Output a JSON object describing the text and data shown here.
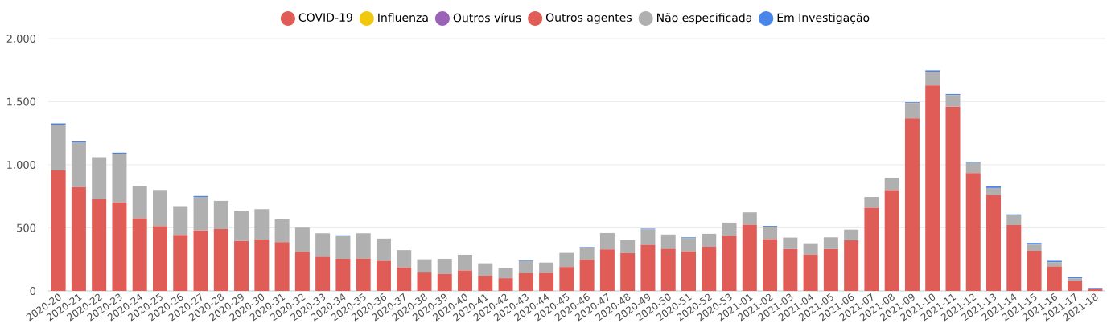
{
  "chart_data": {
    "type": "bar",
    "stacked": true,
    "grid": "y",
    "legend": "top",
    "categories": [
      "2020-20",
      "2020-21",
      "2020-22",
      "2020-23",
      "2020-24",
      "2020-25",
      "2020-26",
      "2020-27",
      "2020-28",
      "2020-29",
      "2020-30",
      "2020-31",
      "2020-32",
      "2020-33",
      "2020-34",
      "2020-35",
      "2020-36",
      "2020-37",
      "2020-38",
      "2020-39",
      "2020-40",
      "2020-41",
      "2020-42",
      "2020-43",
      "2020-44",
      "2020-45",
      "2020-46",
      "2020-47",
      "2020-48",
      "2020-49",
      "2020-50",
      "2020-51",
      "2020-52",
      "2020-53",
      "2021-01",
      "2021-02",
      "2021-03",
      "2021-04",
      "2021-05",
      "2021-06",
      "2021-07",
      "2021-08",
      "2021-09",
      "2021-10",
      "2021-11",
      "2021-12",
      "2021-13",
      "2021-14",
      "2021-15",
      "2021-16",
      "2021-17",
      "2021-18"
    ],
    "ylim": [
      0,
      2000
    ],
    "yticks": [
      0,
      500,
      {
        "value": 1000,
        "label": "1.000"
      },
      {
        "value": 1500,
        "label": "1.500"
      },
      {
        "value": 2000,
        "label": "2.000"
      }
    ],
    "series": [
      {
        "name": "COVID-19",
        "color": "#e05c57",
        "values": [
          955,
          824,
          727,
          702,
          577,
          512,
          445,
          480,
          490,
          397,
          407,
          387,
          310,
          271,
          255,
          257,
          239,
          186,
          146,
          134,
          162,
          121,
          101,
          140,
          142,
          190,
          247,
          330,
          300,
          364,
          334,
          314,
          350,
          437,
          526,
          411,
          332,
          287,
          332,
          401,
          660,
          799,
          1368,
          1629,
          1461,
          935,
          761,
          522,
          318,
          194,
          79,
          16
        ]
      },
      {
        "name": "Influenza",
        "color": "#f2c80f",
        "values": [
          0,
          0,
          0,
          0,
          0,
          0,
          0,
          0,
          0,
          0,
          0,
          0,
          0,
          0,
          0,
          0,
          0,
          0,
          0,
          0,
          0,
          0,
          0,
          0,
          0,
          0,
          0,
          0,
          0,
          0,
          0,
          0,
          0,
          0,
          0,
          0,
          0,
          0,
          0,
          0,
          0,
          0,
          0,
          0,
          0,
          0,
          0,
          0,
          0,
          0,
          0,
          0
        ]
      },
      {
        "name": "Outros vírus",
        "color": "#9b63b8",
        "values": [
          0,
          0,
          0,
          0,
          0,
          0,
          0,
          0,
          0,
          0,
          0,
          0,
          0,
          0,
          0,
          0,
          0,
          0,
          0,
          0,
          0,
          0,
          0,
          0,
          0,
          0,
          0,
          0,
          0,
          0,
          0,
          0,
          0,
          0,
          0,
          0,
          0,
          0,
          0,
          0,
          0,
          0,
          0,
          0,
          0,
          0,
          0,
          0,
          0,
          0,
          0,
          0
        ]
      },
      {
        "name": "Outros agentes",
        "color": "#e05c57",
        "values": [
          0,
          0,
          0,
          0,
          0,
          0,
          0,
          0,
          0,
          0,
          0,
          0,
          0,
          0,
          0,
          0,
          0,
          0,
          0,
          0,
          0,
          0,
          0,
          0,
          0,
          0,
          0,
          0,
          0,
          0,
          0,
          0,
          0,
          0,
          0,
          0,
          0,
          0,
          0,
          0,
          0,
          0,
          0,
          0,
          0,
          0,
          0,
          0,
          0,
          0,
          0,
          0
        ]
      },
      {
        "name": "Não especificada",
        "color": "#b0b0b0",
        "values": [
          361,
          354,
          334,
          387,
          255,
          289,
          227,
          265,
          224,
          237,
          241,
          182,
          192,
          186,
          180,
          200,
          176,
          138,
          105,
          121,
          125,
          98,
          81,
          97,
          83,
          112,
          95,
          129,
          103,
          124,
          113,
          103,
          103,
          105,
          97,
          99,
          91,
          91,
          93,
          85,
          85,
          98,
          120,
          110,
          91,
          80,
          55,
          79,
          50,
          33,
          20,
          null
        ]
      },
      {
        "name": "Em Investigação",
        "color": "#4a86e8",
        "values": [
          12,
          8,
          0,
          8,
          0,
          0,
          0,
          8,
          0,
          0,
          0,
          0,
          0,
          0,
          6,
          0,
          0,
          0,
          0,
          0,
          0,
          0,
          0,
          6,
          0,
          0,
          6,
          0,
          0,
          6,
          0,
          8,
          0,
          0,
          0,
          6,
          0,
          0,
          0,
          0,
          0,
          0,
          8,
          10,
          9,
          7,
          12,
          6,
          13,
          12,
          12,
          8
        ]
      }
    ]
  }
}
